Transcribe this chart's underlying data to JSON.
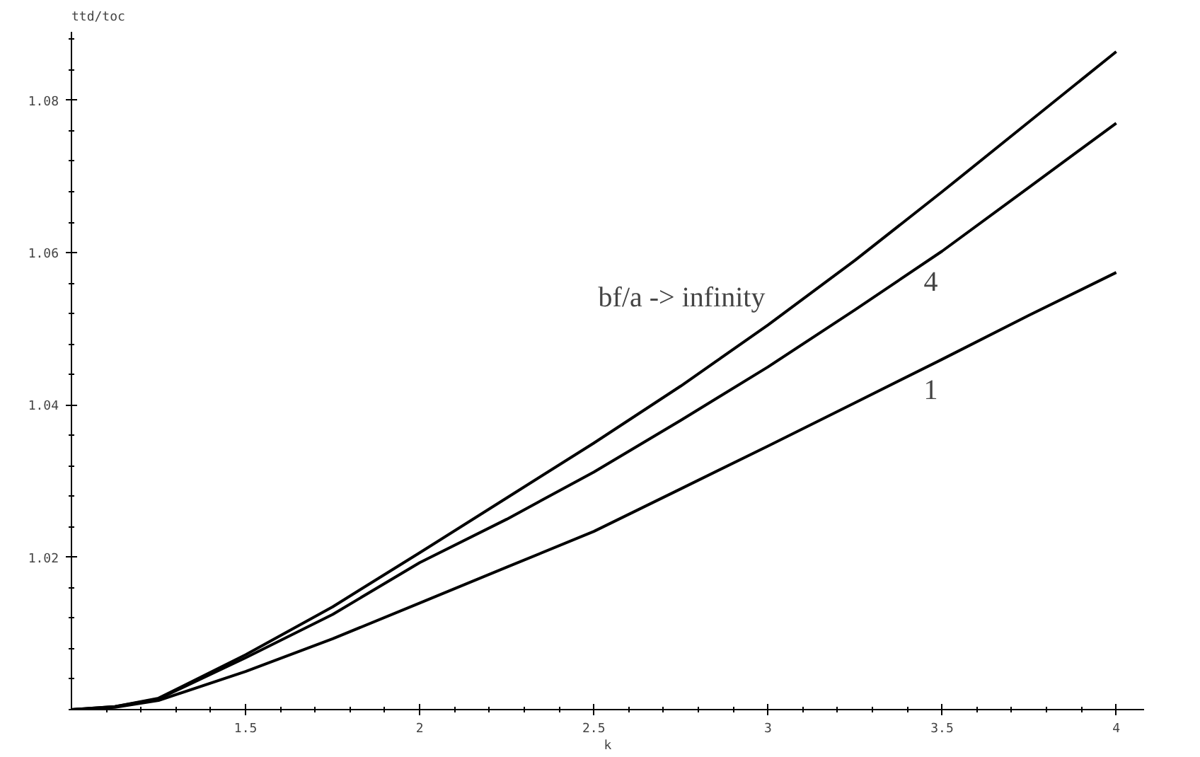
{
  "chart_data": {
    "type": "line",
    "ylabel": "ttd/toc",
    "xlabel": "k",
    "x": [
      1,
      1.125,
      1.25,
      1.5,
      1.75,
      2,
      2.25,
      2.5,
      2.75,
      3,
      3.25,
      3.5,
      3.75,
      4
    ],
    "series": [
      {
        "name": "bf/a -> infinity",
        "color": "#000000",
        "values": [
          1.0,
          1.0004,
          1.0015,
          1.0072,
          1.0135,
          1.0206,
          1.0278,
          1.035,
          1.0425,
          1.0505,
          1.059,
          1.068,
          1.0772,
          1.0864
        ]
      },
      {
        "name": "4",
        "color": "#000000",
        "values": [
          1.0,
          1.0004,
          1.0014,
          1.0068,
          1.0125,
          1.0193,
          1.025,
          1.0312,
          1.038,
          1.045,
          1.0525,
          1.0602,
          1.0686,
          1.077
        ]
      },
      {
        "name": "1",
        "color": "#000000",
        "values": [
          1.0,
          1.0003,
          1.0012,
          1.005,
          1.0093,
          1.014,
          1.0187,
          1.0234,
          1.029,
          1.0346,
          1.0403,
          1.046,
          1.0518,
          1.0574
        ]
      }
    ],
    "xlim": [
      1,
      4.08
    ],
    "ylim": [
      1,
      1.089
    ],
    "xticks": [
      1.5,
      2,
      2.5,
      3,
      3.5,
      4
    ],
    "yticks": [
      1.02,
      1.04,
      1.06,
      1.08
    ],
    "grid": false,
    "legend": false,
    "marker": "none",
    "line_style": "solid"
  }
}
